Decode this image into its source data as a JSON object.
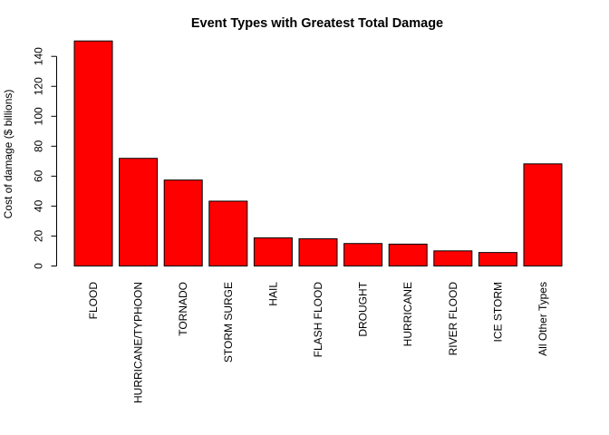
{
  "chart_data": {
    "type": "bar",
    "title": "Event Types with Greatest Total Damage",
    "xlabel": "",
    "ylabel": "Cost of damage ($ billions)",
    "categories": [
      "FLOOD",
      "HURRICANE/TYPHOON",
      "TORNADO",
      "STORM SURGE",
      "HAIL",
      "FLASH FLOOD",
      "DROUGHT",
      "HURRICANE",
      "RIVER FLOOD",
      "ICE STORM",
      "All Other Types"
    ],
    "values": [
      150.3,
      71.9,
      57.4,
      43.3,
      18.8,
      18.2,
      15.0,
      14.6,
      10.1,
      9.0,
      68.2
    ],
    "ylim": [
      0,
      150
    ],
    "yticks": [
      0,
      20,
      40,
      60,
      80,
      100,
      120,
      140
    ],
    "bar_color": "#ff0000",
    "grid": false,
    "legend": "none"
  }
}
